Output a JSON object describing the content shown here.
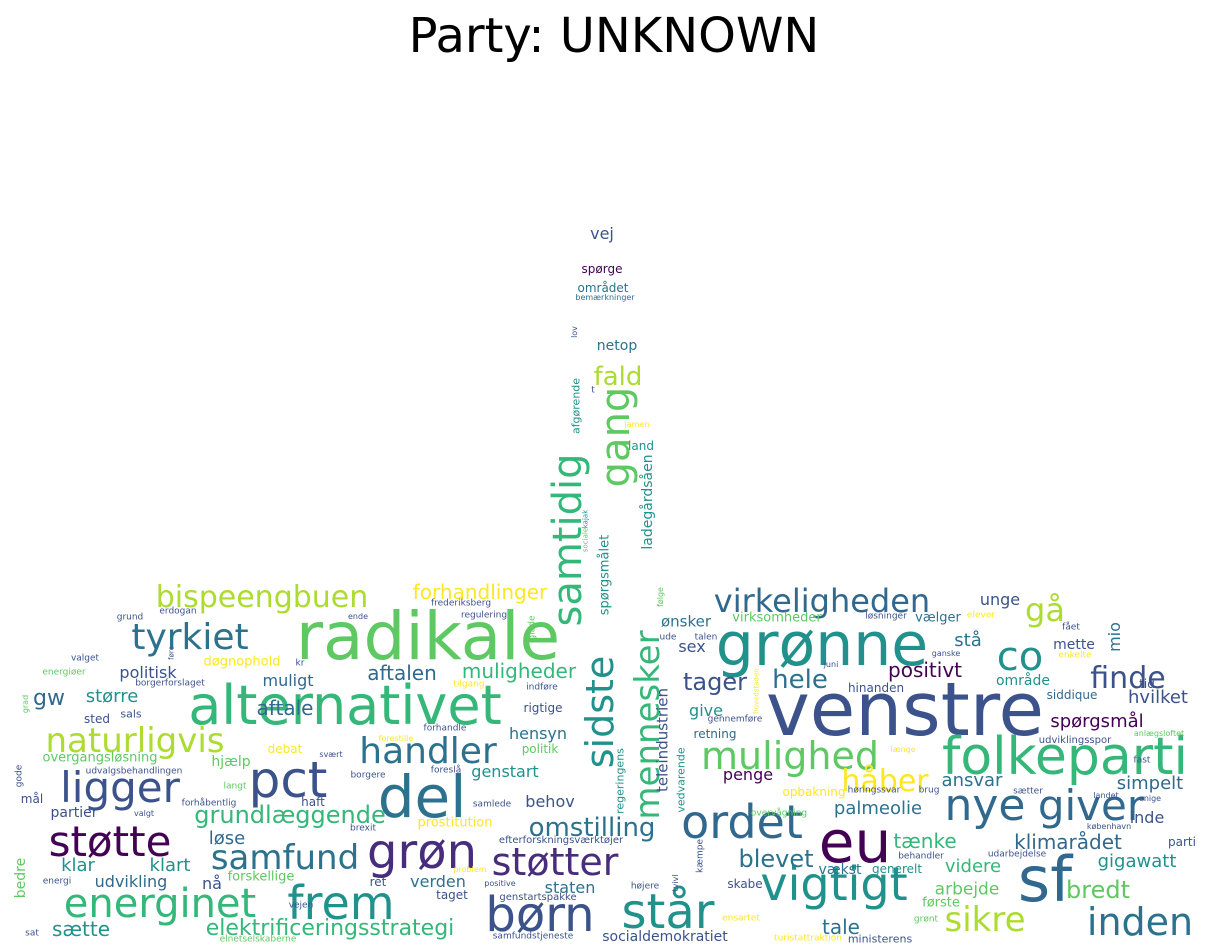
{
  "title": "Party: UNKNOWN",
  "words": [
    {
      "text": "venstre",
      "color": "#3b528b",
      "weight": 1.0
    },
    {
      "text": "radikale",
      "color": "#5ec962",
      "weight": 0.95
    },
    {
      "text": "alternativet",
      "color": "#35b779",
      "weight": 0.9
    },
    {
      "text": "grønne",
      "color": "#21918c",
      "weight": 0.85
    },
    {
      "text": "folkeparti",
      "color": "#35b779",
      "weight": 0.8
    },
    {
      "text": "del",
      "color": "#2c728e",
      "weight": 0.8
    },
    {
      "text": "eu",
      "color": "#440154",
      "weight": 0.8
    },
    {
      "text": "sf",
      "color": "#31688e",
      "weight": 0.85
    },
    {
      "text": "børn",
      "color": "#3b528b",
      "weight": 0.7
    },
    {
      "text": "står",
      "color": "#21918c",
      "weight": 0.7
    },
    {
      "text": "grøn",
      "color": "#472d7b",
      "weight": 0.7
    },
    {
      "text": "frem",
      "color": "#21918c",
      "weight": 0.65
    },
    {
      "text": "vigtigt",
      "color": "#21918c",
      "weight": 0.65
    },
    {
      "text": "ordet",
      "color": "#31688e",
      "weight": 0.65
    },
    {
      "text": "pct",
      "color": "#3b528b",
      "weight": 0.65
    },
    {
      "text": "nye",
      "color": "#31688e",
      "weight": 0.62
    },
    {
      "text": "giver",
      "color": "#31688e",
      "weight": 0.6
    },
    {
      "text": "mulighed",
      "color": "#5ec962",
      "weight": 0.55
    },
    {
      "text": "handler",
      "color": "#2c728e",
      "weight": 0.5
    },
    {
      "text": "ligger",
      "color": "#3b528b",
      "weight": 0.55
    },
    {
      "text": "støtte",
      "color": "#440154",
      "weight": 0.55
    },
    {
      "text": "støtter",
      "color": "#472d7b",
      "weight": 0.5
    },
    {
      "text": "samfund",
      "color": "#2c728e",
      "weight": 0.5
    },
    {
      "text": "energinet",
      "color": "#35b779",
      "weight": 0.55
    },
    {
      "text": "naturligvis",
      "color": "#addc30",
      "weight": 0.5
    },
    {
      "text": "tyrkiet",
      "color": "#2c728e",
      "weight": 0.5
    },
    {
      "text": "virkeligheden",
      "color": "#31688e",
      "weight": 0.45
    },
    {
      "text": "co",
      "color": "#21918c",
      "weight": 0.6
    },
    {
      "text": "sikre",
      "color": "#addc30",
      "weight": 0.5
    },
    {
      "text": "inden",
      "color": "#2c728e",
      "weight": 0.5
    },
    {
      "text": "bispeengbuen",
      "color": "#addc30",
      "weight": 0.42
    },
    {
      "text": "samtidig",
      "color": "#35b779",
      "weight": 0.5
    },
    {
      "text": "sidste",
      "color": "#21918c",
      "weight": 0.5
    },
    {
      "text": "mennesker",
      "color": "#35b779",
      "weight": 0.5
    },
    {
      "text": "gang",
      "color": "#5ec962",
      "weight": 0.5
    },
    {
      "text": "finde",
      "color": "#3b528b",
      "weight": 0.4
    },
    {
      "text": "håber",
      "color": "#fde725",
      "weight": 0.4
    },
    {
      "text": "gå",
      "color": "#addc30",
      "weight": 0.42
    },
    {
      "text": "omstilling",
      "color": "#2c728e",
      "weight": 0.38
    },
    {
      "text": "blevet",
      "color": "#2c728e",
      "weight": 0.35
    },
    {
      "text": "bredt",
      "color": "#5ec962",
      "weight": 0.35
    },
    {
      "text": "grundlæggende",
      "color": "#35b779",
      "weight": 0.35
    },
    {
      "text": "hele",
      "color": "#2c728e",
      "weight": 0.35
    },
    {
      "text": "tager",
      "color": "#3b528b",
      "weight": 0.33
    },
    {
      "text": "elektrificeringsstrategi",
      "color": "#35b779",
      "weight": 0.33
    },
    {
      "text": "fald",
      "color": "#addc30",
      "weight": 0.35
    },
    {
      "text": "aftalen",
      "color": "#31688e",
      "weight": 0.3
    },
    {
      "text": "muligheder",
      "color": "#35b779",
      "weight": 0.3
    },
    {
      "text": "forhandlinger",
      "color": "#fde725",
      "weight": 0.28
    },
    {
      "text": "palmeolie",
      "color": "#2c728e",
      "weight": 0.28
    },
    {
      "text": "positivt",
      "color": "#440154",
      "weight": 0.3
    },
    {
      "text": "klimarådet",
      "color": "#31688e",
      "weight": 0.3
    },
    {
      "text": "tænke",
      "color": "#35b779",
      "weight": 0.3
    },
    {
      "text": "videre",
      "color": "#35b779",
      "weight": 0.28
    },
    {
      "text": "simpelt",
      "color": "#31688e",
      "weight": 0.27
    },
    {
      "text": "spørgsmål",
      "color": "#440154",
      "weight": 0.27
    },
    {
      "text": "hvilket",
      "color": "#3b528b",
      "weight": 0.26
    },
    {
      "text": "gigawatt",
      "color": "#21918c",
      "weight": 0.27
    },
    {
      "text": "ansvar",
      "color": "#2c728e",
      "weight": 0.27
    },
    {
      "text": "arbejde",
      "color": "#5ec962",
      "weight": 0.26
    },
    {
      "text": "sætte",
      "color": "#21918c",
      "weight": 0.27
    },
    {
      "text": "tale",
      "color": "#2c728e",
      "weight": 0.27
    },
    {
      "text": "aftale",
      "color": "#31688e",
      "weight": 0.28
    },
    {
      "text": "politisk",
      "color": "#3b528b",
      "weight": 0.26
    },
    {
      "text": "større",
      "color": "#21918c",
      "weight": 0.26
    },
    {
      "text": "gw",
      "color": "#31688e",
      "weight": 0.3
    },
    {
      "text": "muligt",
      "color": "#31688e",
      "weight": 0.25
    },
    {
      "text": "genstart",
      "color": "#21918c",
      "weight": 0.25
    },
    {
      "text": "hensyn",
      "color": "#2c728e",
      "weight": 0.25
    },
    {
      "text": "behov",
      "color": "#3b528b",
      "weight": 0.25
    },
    {
      "text": "løse",
      "color": "#31688e",
      "weight": 0.25
    },
    {
      "text": "klar",
      "color": "#21918c",
      "weight": 0.25
    },
    {
      "text": "klart",
      "color": "#21918c",
      "weight": 0.25
    },
    {
      "text": "udvikling",
      "color": "#31688e",
      "weight": 0.22
    },
    {
      "text": "nå",
      "color": "#3b528b",
      "weight": 0.23
    },
    {
      "text": "staten",
      "color": "#2c728e",
      "weight": 0.22
    },
    {
      "text": "verden",
      "color": "#2c728e",
      "weight": 0.22
    },
    {
      "text": "penge",
      "color": "#440154",
      "weight": 0.22
    },
    {
      "text": "give",
      "color": "#21918c",
      "weight": 0.22
    },
    {
      "text": "sex",
      "color": "#3b528b",
      "weight": 0.22
    },
    {
      "text": "ønsker",
      "color": "#2c728e",
      "weight": 0.21
    },
    {
      "text": "unge",
      "color": "#3b528b",
      "weight": 0.22
    },
    {
      "text": "stå",
      "color": "#2c728e",
      "weight": 0.23
    },
    {
      "text": "mio",
      "color": "#2c728e",
      "weight": 0.24
    },
    {
      "text": "mette",
      "color": "#3b528b",
      "weight": 0.2
    },
    {
      "text": "område",
      "color": "#21918c",
      "weight": 0.2
    },
    {
      "text": "tid",
      "color": "#3b528b",
      "weight": 0.18
    },
    {
      "text": "inde",
      "color": "#3b528b",
      "weight": 0.2
    },
    {
      "text": "netop",
      "color": "#2c728e",
      "weight": 0.2
    },
    {
      "text": "vej",
      "color": "#3b528b",
      "weight": 0.2
    },
    {
      "text": "spørge",
      "color": "#440154",
      "weight": 0.16
    },
    {
      "text": "området",
      "color": "#2c728e",
      "weight": 0.16
    },
    {
      "text": "bemærkninger",
      "color": "#2c728e",
      "weight": 0.11
    },
    {
      "text": "lov",
      "color": "#3b528b",
      "weight": 0.11
    },
    {
      "text": "land",
      "color": "#21918c",
      "weight": 0.16
    },
    {
      "text": "jamen",
      "color": "#fde725",
      "weight": 0.11
    },
    {
      "text": "ladegårdsåen",
      "color": "#21918c",
      "weight": 0.2
    },
    {
      "text": "spørgsmålet",
      "color": "#21918c",
      "weight": 0.2
    },
    {
      "text": "afgørende",
      "color": "#21918c",
      "weight": 0.16
    },
    {
      "text": "teleindustrien",
      "color": "#3b528b",
      "weight": 0.22
    },
    {
      "text": "regeringens",
      "color": "#21918c",
      "weight": 0.16
    },
    {
      "text": "vedvarende",
      "color": "#21918c",
      "weight": 0.16
    },
    {
      "text": "sociale",
      "color": "#5ec962",
      "weight": 0.11
    },
    {
      "text": "kajak",
      "color": "#21918c",
      "weight": 0.11
    },
    {
      "text": "glade",
      "color": "#5ec962",
      "weight": 0.13
    },
    {
      "text": "følge",
      "color": "#5ec962",
      "weight": 0.11
    },
    {
      "text": "virksomheder",
      "color": "#5ec962",
      "weight": 0.16
    },
    {
      "text": "vælger",
      "color": "#2c728e",
      "weight": 0.16
    },
    {
      "text": "løsninger",
      "color": "#3b528b",
      "weight": 0.11
    },
    {
      "text": "elever",
      "color": "#fde725",
      "weight": 0.11
    },
    {
      "text": "fået",
      "color": "#3b528b",
      "weight": 0.11
    },
    {
      "text": "talen",
      "color": "#3b528b",
      "weight": 0.11
    },
    {
      "text": "ude",
      "color": "#3b528b",
      "weight": 0.11
    },
    {
      "text": "retning",
      "color": "#31688e",
      "weight": 0.15
    },
    {
      "text": "hinanden",
      "color": "#3b528b",
      "weight": 0.16
    },
    {
      "text": "siddique",
      "color": "#31688e",
      "weight": 0.16
    },
    {
      "text": "enkelte",
      "color": "#fde725",
      "weight": 0.11
    },
    {
      "text": "ganske",
      "color": "#3b528b",
      "weight": 0.11
    },
    {
      "text": "juni",
      "color": "#3b528b",
      "weight": 0.11
    },
    {
      "text": "udviklingsspor",
      "color": "#3b528b",
      "weight": 0.13
    },
    {
      "text": "anlægsloftet",
      "color": "#5ec962",
      "weight": 0.1
    },
    {
      "text": "fast",
      "color": "#3b528b",
      "weight": 0.11
    },
    {
      "text": "enige",
      "color": "#3b528b",
      "weight": 0.1
    },
    {
      "text": "københavn",
      "color": "#3b528b",
      "weight": 0.1
    },
    {
      "text": "parti",
      "color": "#3b528b",
      "weight": 0.14
    },
    {
      "text": "udarbejdelse",
      "color": "#3b528b",
      "weight": 0.11
    },
    {
      "text": "behandler",
      "color": "#3b528b",
      "weight": 0.11
    },
    {
      "text": "generelt",
      "color": "#21918c",
      "weight": 0.14
    },
    {
      "text": "vækst",
      "color": "#2c728e",
      "weight": 0.16
    },
    {
      "text": "skabe",
      "color": "#3b528b",
      "weight": 0.14
    },
    {
      "text": "første",
      "color": "#5ec962",
      "weight": 0.14
    },
    {
      "text": "grønt",
      "color": "#5ec962",
      "weight": 0.11
    },
    {
      "text": "høringssvar",
      "color": "#3b528b",
      "weight": 0.11
    },
    {
      "text": "brug",
      "color": "#3b528b",
      "weight": 0.11
    },
    {
      "text": "sætter",
      "color": "#3b528b",
      "weight": 0.1
    },
    {
      "text": "landet",
      "color": "#3b528b",
      "weight": 0.1
    },
    {
      "text": "opbakning",
      "color": "#fde725",
      "weight": 0.14
    },
    {
      "text": "overvågning",
      "color": "#5ec962",
      "weight": 0.11
    },
    {
      "text": "længe",
      "color": "#fde725",
      "weight": 0.11
    },
    {
      "text": "gennemføre",
      "color": "#3b528b",
      "weight": 0.11
    },
    {
      "text": "hovedstaden",
      "color": "#fde725",
      "weight": 0.1
    },
    {
      "text": "ensartet",
      "color": "#fde725",
      "weight": 0.11
    },
    {
      "text": "turistattraktion",
      "color": "#fde725",
      "weight": 0.11
    },
    {
      "text": "ministerens",
      "color": "#3b528b",
      "weight": 0.13
    },
    {
      "text": "højere",
      "color": "#3b528b",
      "weight": 0.11
    },
    {
      "text": "tvivl",
      "color": "#3b528b",
      "weight": 0.11
    },
    {
      "text": "kæmpe",
      "color": "#3b528b",
      "weight": 0.11
    },
    {
      "text": "socialdemokratiet",
      "color": "#3b528b",
      "weight": 0.18
    },
    {
      "text": "samfundstjeneste",
      "color": "#3b528b",
      "weight": 0.11
    },
    {
      "text": "genstartspakke",
      "color": "#3b528b",
      "weight": 0.11
    },
    {
      "text": "efterforskningsværktøjer",
      "color": "#3b528b",
      "weight": 0.11
    },
    {
      "text": "prostitution",
      "color": "#fde725",
      "weight": 0.16
    },
    {
      "text": "samlede",
      "color": "#3b528b",
      "weight": 0.1
    },
    {
      "text": "problem",
      "color": "#fde725",
      "weight": 0.1
    },
    {
      "text": "taget",
      "color": "#3b528b",
      "weight": 0.14
    },
    {
      "text": "positive",
      "color": "#3b528b",
      "weight": 0.1
    },
    {
      "text": "rigtige",
      "color": "#3b528b",
      "weight": 0.15
    },
    {
      "text": "politik",
      "color": "#5ec962",
      "weight": 0.14
    },
    {
      "text": "indføre",
      "color": "#3b528b",
      "weight": 0.11
    },
    {
      "text": "tilgang",
      "color": "#fde725",
      "weight": 0.11
    },
    {
      "text": "regulering",
      "color": "#3b528b",
      "weight": 0.11
    },
    {
      "text": "frederiksberg",
      "color": "#3b528b",
      "weight": 0.11
    },
    {
      "text": "ende",
      "color": "#3b528b",
      "weight": 0.1
    },
    {
      "text": "kr",
      "color": "#3b528b",
      "weight": 0.1
    },
    {
      "text": "døgnophold",
      "color": "#fde725",
      "weight": 0.15
    },
    {
      "text": "forhandle",
      "color": "#3b528b",
      "weight": 0.11
    },
    {
      "text": "foreslå",
      "color": "#3b528b",
      "weight": 0.11
    },
    {
      "text": "borgere",
      "color": "#3b528b",
      "weight": 0.11
    },
    {
      "text": "haft",
      "color": "#3b528b",
      "weight": 0.13
    },
    {
      "text": "brexit",
      "color": "#3b528b",
      "weight": 0.11
    },
    {
      "text": "forestille",
      "color": "#fde725",
      "weight": 0.1
    },
    {
      "text": "ret",
      "color": "#3b528b",
      "weight": 0.14
    },
    {
      "text": "forskellige",
      "color": "#5ec962",
      "weight": 0.16
    },
    {
      "text": "svært",
      "color": "#3b528b",
      "weight": 0.1
    },
    {
      "text": "langt",
      "color": "#5ec962",
      "weight": 0.11
    },
    {
      "text": "forhåbentlig",
      "color": "#3b528b",
      "weight": 0.11
    },
    {
      "text": "debat",
      "color": "#fde725",
      "weight": 0.14
    },
    {
      "text": "hjælp",
      "color": "#5ec962",
      "weight": 0.16
    },
    {
      "text": "sals",
      "color": "#3b528b",
      "weight": 0.13
    },
    {
      "text": "sted",
      "color": "#3b528b",
      "weight": 0.14
    },
    {
      "text": "overgangsløsning",
      "color": "#5ec962",
      "weight": 0.16
    },
    {
      "text": "udvalgsbehandlingen",
      "color": "#3b528b",
      "weight": 0.11
    },
    {
      "text": "mål",
      "color": "#3b528b",
      "weight": 0.15
    },
    {
      "text": "partier",
      "color": "#3b528b",
      "weight": 0.16
    },
    {
      "text": "gode",
      "color": "#3b528b",
      "weight": 0.11
    },
    {
      "text": "bedre",
      "color": "#5ec962",
      "weight": 0.15
    },
    {
      "text": "energi",
      "color": "#3b528b",
      "weight": 0.1
    },
    {
      "text": "vejen",
      "color": "#3b528b",
      "weight": 0.1
    },
    {
      "text": "valgt",
      "color": "#3b528b",
      "weight": 0.1
    },
    {
      "text": "sat",
      "color": "#3b528b",
      "weight": 0.1
    },
    {
      "text": "elnetselskaberne",
      "color": "#5ec962",
      "weight": 0.1
    },
    {
      "text": "grad",
      "color": "#5ec962",
      "weight": 0.1
    },
    {
      "text": "valget",
      "color": "#3b528b",
      "weight": 0.1
    },
    {
      "text": "energiøer",
      "color": "#5ec962",
      "weight": 0.1
    },
    {
      "text": "grund",
      "color": "#3b528b",
      "weight": 0.1
    },
    {
      "text": "erdogan",
      "color": "#3b528b",
      "weight": 0.1
    },
    {
      "text": "borgerforslaget",
      "color": "#3b528b",
      "weight": 0.1
    },
    {
      "text": "føre",
      "color": "#3b528b",
      "weight": 0.1
    },
    {
      "text": "t",
      "color": "#3b528b",
      "weight": 0.1
    }
  ]
}
